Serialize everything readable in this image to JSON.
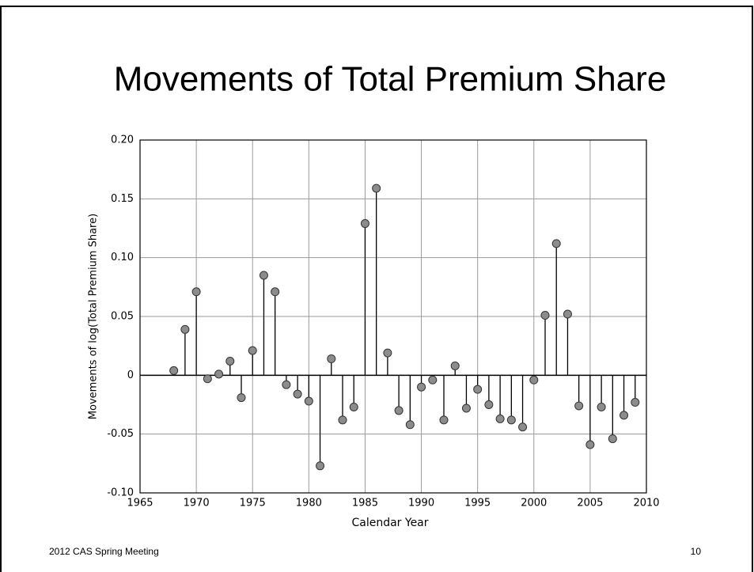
{
  "chart_data": {
    "type": "stem",
    "title": "Movements of Total Premium Share",
    "xlabel": "Calendar Year",
    "ylabel": "Movements of log(Total Premium Share)",
    "x": [
      1968,
      1969,
      1970,
      1971,
      1972,
      1973,
      1974,
      1975,
      1976,
      1977,
      1978,
      1979,
      1980,
      1981,
      1982,
      1983,
      1984,
      1985,
      1986,
      1987,
      1988,
      1989,
      1990,
      1991,
      1992,
      1993,
      1994,
      1995,
      1996,
      1997,
      1998,
      1999,
      2000,
      2001,
      2002,
      2003,
      2004,
      2005,
      2006,
      2007,
      2008,
      2009
    ],
    "values": [
      0.004,
      0.039,
      0.071,
      -0.003,
      0.001,
      0.012,
      -0.019,
      0.021,
      0.085,
      0.071,
      -0.008,
      -0.016,
      -0.022,
      -0.077,
      0.014,
      -0.038,
      -0.027,
      0.129,
      0.159,
      0.019,
      -0.03,
      -0.042,
      -0.01,
      -0.004,
      -0.038,
      0.008,
      -0.028,
      -0.012,
      -0.025,
      -0.037,
      -0.038,
      -0.044,
      -0.004,
      0.051,
      0.112,
      0.052,
      -0.026,
      -0.059,
      -0.027,
      -0.054,
      -0.034,
      -0.023
    ],
    "color": "#8c8c8c",
    "xlim": [
      1965,
      2010
    ],
    "xticks": [
      1965,
      1970,
      1975,
      1980,
      1985,
      1990,
      1995,
      2000,
      2005,
      2010
    ],
    "ylim": [
      -0.1,
      0.2
    ],
    "yticks": [
      {
        "value": 0.2,
        "label": "0.20"
      },
      0.15,
      {
        "value": 0.1,
        "label": "0.10"
      },
      0.05,
      0,
      -0.05,
      {
        "value": -0.1,
        "label": "-0.10"
      }
    ],
    "grid": true
  },
  "footer": {
    "left": "2012 CAS Spring Meeting",
    "right": "10"
  }
}
